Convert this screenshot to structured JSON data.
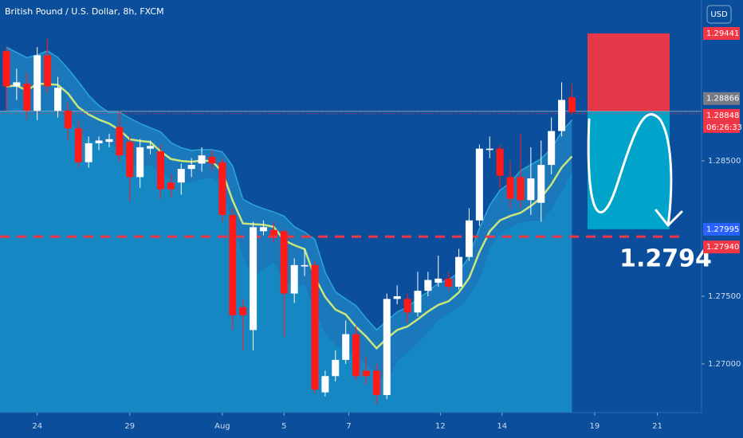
{
  "chart_data": {
    "type": "candlestick",
    "title": "British Pound / U.S. Dollar, 8h, FXCM",
    "currency": "USD",
    "up_color": "#ffffff",
    "down_color": "#ff1a1a",
    "open": [
      1.2931,
      1.2905,
      1.2907,
      1.2887,
      1.2928,
      1.2887,
      1.2887,
      1.2874,
      1.2849,
      1.2863,
      1.2864,
      1.2875,
      1.2864,
      1.2838,
      1.2859,
      1.2857,
      1.2834,
      1.2834,
      1.2844,
      1.2848,
      1.2853,
      1.2849,
      1.281,
      1.2742,
      1.2725,
      1.2798,
      1.2799,
      1.2798,
      1.2752,
      1.2772,
      1.2773,
      1.2679,
      1.2691,
      1.2703,
      1.2722,
      1.2695,
      1.2695,
      1.2677,
      1.2748,
      1.2748,
      1.2738,
      1.2754,
      1.276,
      1.2763,
      1.2757,
      1.2779,
      1.2806,
      1.2858,
      1.2859,
      1.2838,
      1.2838,
      1.2821,
      1.2819,
      1.2847,
      1.2872,
      1.2897
    ],
    "high": [
      1.2934,
      1.2918,
      1.2915,
      1.2934,
      1.294,
      1.2912,
      1.2893,
      1.288,
      1.2868,
      1.2868,
      1.287,
      1.2887,
      1.2868,
      1.2866,
      1.2865,
      1.2862,
      1.284,
      1.2848,
      1.2852,
      1.286,
      1.2858,
      1.2852,
      1.2815,
      1.2748,
      1.2805,
      1.2806,
      1.2805,
      1.28,
      1.2778,
      1.2785,
      1.2776,
      1.2695,
      1.271,
      1.2732,
      1.2728,
      1.2705,
      1.27,
      1.2752,
      1.2758,
      1.2752,
      1.2768,
      1.2768,
      1.278,
      1.2768,
      1.2785,
      1.2815,
      1.2862,
      1.2868,
      1.2862,
      1.285,
      1.287,
      1.286,
      1.2865,
      1.2882,
      1.2908,
      1.2907
    ],
    "low": [
      1.2887,
      1.2895,
      1.288,
      1.288,
      1.29,
      1.2882,
      1.2865,
      1.2845,
      1.2845,
      1.2858,
      1.286,
      1.2849,
      1.282,
      1.283,
      1.2855,
      1.2822,
      1.2823,
      1.2825,
      1.2838,
      1.2842,
      1.2843,
      1.2805,
      1.2725,
      1.271,
      1.271,
      1.2795,
      1.279,
      1.272,
      1.2745,
      1.2765,
      1.2678,
      1.2676,
      1.2687,
      1.27,
      1.2688,
      1.2685,
      1.267,
      1.2674,
      1.2744,
      1.273,
      1.2735,
      1.275,
      1.2757,
      1.2754,
      1.2755,
      1.2776,
      1.2802,
      1.2852,
      1.283,
      1.2815,
      1.2815,
      1.281,
      1.2805,
      1.284,
      1.2868,
      1.2884
    ],
    "close": [
      1.2905,
      1.2908,
      1.2887,
      1.2928,
      1.2905,
      1.2904,
      1.2874,
      1.2849,
      1.2863,
      1.2865,
      1.2866,
      1.2854,
      1.2838,
      1.286,
      1.2861,
      1.2829,
      1.2829,
      1.2844,
      1.2847,
      1.2854,
      1.2848,
      1.281,
      1.2736,
      1.2736,
      1.2801,
      1.2801,
      1.2795,
      1.2752,
      1.2773,
      1.2773,
      1.2681,
      1.2691,
      1.2703,
      1.2722,
      1.2691,
      1.2691,
      1.2677,
      1.2748,
      1.275,
      1.2738,
      1.2754,
      1.2762,
      1.2763,
      1.2757,
      1.2779,
      1.2806,
      1.2859,
      1.2859,
      1.2839,
      1.2822,
      1.2821,
      1.2837,
      1.2847,
      1.2872,
      1.2895,
      1.2886
    ],
    "xlim": [
      -0.62,
      67.6
    ],
    "xticks": [
      {
        "value": 3,
        "label": "24"
      },
      {
        "value": 12,
        "label": "29"
      },
      {
        "value": 21,
        "label": "Aug"
      },
      {
        "value": 27,
        "label": "5"
      },
      {
        "value": 33.3,
        "label": "7"
      },
      {
        "value": 42.2,
        "label": "12"
      },
      {
        "value": 48.2,
        "label": "14"
      },
      {
        "value": 57.2,
        "label": "19"
      },
      {
        "value": 63.3,
        "label": "21"
      }
    ],
    "ylim": [
      1.26641,
      1.29688
    ],
    "yticks": [
      {
        "value": 1.27,
        "label": "1.27000"
      },
      {
        "value": 1.275,
        "label": "1.27500"
      },
      {
        "value": 1.285,
        "label": "1.28500"
      }
    ],
    "position": {
      "stop": 1.29441,
      "entry": 1.28866,
      "target": 1.27995,
      "stop_color": "#f23645",
      "target_color": "#00a8cc"
    },
    "current_price": {
      "value": 1.28848,
      "countdown": "06:26:33",
      "color": "#f23645"
    },
    "level": {
      "value": 1.2794,
      "axis_label": "1.27940",
      "color": "#f23645"
    }
  }
}
